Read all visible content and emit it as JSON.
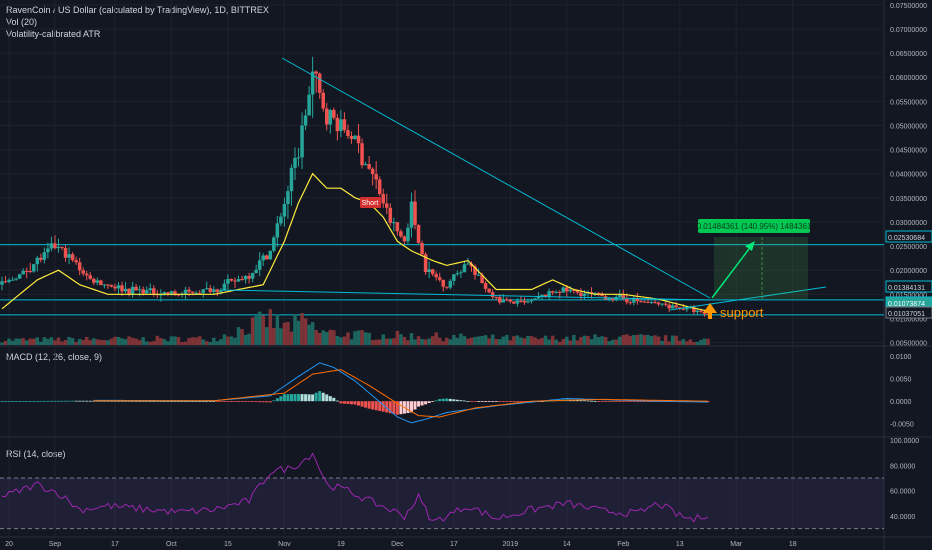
{
  "header": {
    "title": "RavenCoin / US Dollar (calculated by TradingView), 1D, BITTREX",
    "vol_label": "Vol (20)",
    "atr_label": "Volatility-calibrated ATR"
  },
  "macd_panel": {
    "label": "MACD (12, 26, close, 9)"
  },
  "rsi_panel": {
    "label": "RSI (14, close)"
  },
  "colors": {
    "background": "#131722",
    "up_candle": "#26a69a",
    "down_candle": "#ef5350",
    "atr_line": "#ffeb3b",
    "trend_line": "#00bcd4",
    "macd_line": "#2196f3",
    "signal_line": "#ff6d00",
    "rsi_line": "#9c27b0",
    "target_box": "#4caf50",
    "support_text": "#ff9800"
  },
  "annotations": {
    "target_label": "0.01484361 (140.95%) 1484361",
    "support_text": "support",
    "short_label": "Short",
    "price_badges": [
      "0.02530684",
      "0.01384131",
      "0.01073874",
      "0.01037051"
    ]
  },
  "chart_data": [
    {
      "type": "candlestick",
      "name": "price",
      "ylim": [
        0.0045,
        0.076
      ],
      "y_ticks": [
        "0.07500000",
        "0.07000000",
        "0.06500000",
        "0.06000000",
        "0.05500000",
        "0.05000000",
        "0.04500000",
        "0.04000000",
        "0.03500000",
        "0.03000000",
        "0.02500000",
        "0.02000000",
        "0.01500000",
        "0.01000000",
        "0.00500000"
      ],
      "x_ticks": [
        "20",
        "Sep",
        "17",
        "Oct",
        "15",
        "Nov",
        "19",
        "Dec",
        "17",
        "2019",
        "14",
        "Feb",
        "13",
        "Mar",
        "18"
      ],
      "close_key": [
        [
          0,
          0.017
        ],
        [
          5,
          0.019
        ],
        [
          10,
          0.022
        ],
        [
          15,
          0.025
        ],
        [
          20,
          0.022
        ],
        [
          25,
          0.018
        ],
        [
          35,
          0.016
        ],
        [
          50,
          0.015
        ],
        [
          60,
          0.016
        ],
        [
          70,
          0.019
        ],
        [
          76,
          0.024
        ],
        [
          80,
          0.034
        ],
        [
          84,
          0.045
        ],
        [
          88,
          0.06
        ],
        [
          92,
          0.052
        ],
        [
          96,
          0.05
        ],
        [
          100,
          0.047
        ],
        [
          106,
          0.038
        ],
        [
          110,
          0.03
        ],
        [
          114,
          0.026
        ],
        [
          116,
          0.033
        ],
        [
          120,
          0.02
        ],
        [
          126,
          0.017
        ],
        [
          132,
          0.022
        ],
        [
          134,
          0.019
        ],
        [
          140,
          0.014
        ],
        [
          148,
          0.013
        ],
        [
          158,
          0.016
        ],
        [
          166,
          0.015
        ],
        [
          176,
          0.014
        ],
        [
          186,
          0.013
        ],
        [
          194,
          0.012
        ],
        [
          200,
          0.0108
        ]
      ],
      "atr_key": [
        [
          0,
          0.012
        ],
        [
          10,
          0.018
        ],
        [
          16,
          0.02
        ],
        [
          22,
          0.017
        ],
        [
          30,
          0.015
        ],
        [
          60,
          0.015
        ],
        [
          74,
          0.017
        ],
        [
          80,
          0.026
        ],
        [
          84,
          0.034
        ],
        [
          88,
          0.04
        ],
        [
          92,
          0.037
        ],
        [
          96,
          0.037
        ],
        [
          100,
          0.035
        ],
        [
          104,
          0.034
        ],
        [
          108,
          0.031
        ],
        [
          112,
          0.026
        ],
        [
          116,
          0.024
        ],
        [
          122,
          0.022
        ],
        [
          126,
          0.021
        ],
        [
          132,
          0.022
        ],
        [
          136,
          0.019
        ],
        [
          140,
          0.016
        ],
        [
          150,
          0.016
        ],
        [
          156,
          0.018
        ],
        [
          162,
          0.016
        ],
        [
          168,
          0.015
        ],
        [
          176,
          0.015
        ],
        [
          186,
          0.014
        ],
        [
          194,
          0.0125
        ],
        [
          200,
          0.0115
        ]
      ]
    },
    {
      "type": "bar",
      "name": "volume",
      "vol_key": [
        [
          0,
          0.2
        ],
        [
          60,
          0.25
        ],
        [
          76,
          1.0
        ],
        [
          80,
          0.7
        ],
        [
          86,
          0.9
        ],
        [
          90,
          0.5
        ],
        [
          100,
          0.4
        ],
        [
          116,
          0.35
        ],
        [
          130,
          0.3
        ],
        [
          150,
          0.25
        ],
        [
          180,
          0.3
        ],
        [
          200,
          0.2
        ]
      ]
    },
    {
      "type": "macd",
      "name": "MACD (12, 26, close, 9)",
      "ylim": [
        -0.0075,
        0.0118
      ],
      "y_ticks": [
        "0.0100",
        "0.0050",
        "0.0000",
        "-0.0050"
      ],
      "macd_key": [
        [
          0,
          0
        ],
        [
          20,
          0.0002
        ],
        [
          60,
          0.0001
        ],
        [
          76,
          0.0012
        ],
        [
          84,
          0.0055
        ],
        [
          90,
          0.0085
        ],
        [
          94,
          0.0075
        ],
        [
          100,
          0.0045
        ],
        [
          106,
          0.0005
        ],
        [
          112,
          -0.0035
        ],
        [
          116,
          -0.0048
        ],
        [
          120,
          -0.004
        ],
        [
          126,
          -0.0025
        ],
        [
          140,
          -0.001
        ],
        [
          160,
          0.0006
        ],
        [
          180,
          0.0001
        ],
        [
          200,
          -0.0002
        ]
      ],
      "signal_key": [
        [
          0,
          0
        ],
        [
          20,
          0.0001
        ],
        [
          60,
          0.0001
        ],
        [
          80,
          0.0018
        ],
        [
          88,
          0.006
        ],
        [
          96,
          0.007
        ],
        [
          104,
          0.0035
        ],
        [
          112,
          -0.0005
        ],
        [
          118,
          -0.0032
        ],
        [
          124,
          -0.0035
        ],
        [
          134,
          -0.0015
        ],
        [
          150,
          0
        ],
        [
          170,
          0.0004
        ],
        [
          200,
          0
        ]
      ]
    },
    {
      "type": "line",
      "name": "RSI (14, close)",
      "ylim": [
        25,
        100
      ],
      "y_ticks": [
        "100.0000",
        "80.0000",
        "60.0000",
        "40.0000"
      ],
      "bands": [
        30,
        70
      ],
      "rsi_key": [
        [
          0,
          55
        ],
        [
          10,
          65
        ],
        [
          16,
          58
        ],
        [
          22,
          45
        ],
        [
          30,
          48
        ],
        [
          50,
          43
        ],
        [
          60,
          45
        ],
        [
          70,
          52
        ],
        [
          76,
          75
        ],
        [
          82,
          78
        ],
        [
          86,
          85
        ],
        [
          88,
          90
        ],
        [
          92,
          65
        ],
        [
          98,
          60
        ],
        [
          104,
          52
        ],
        [
          110,
          45
        ],
        [
          114,
          40
        ],
        [
          118,
          55
        ],
        [
          122,
          35
        ],
        [
          132,
          48
        ],
        [
          140,
          38
        ],
        [
          150,
          45
        ],
        [
          160,
          50
        ],
        [
          170,
          44
        ],
        [
          180,
          42
        ],
        [
          186,
          50
        ],
        [
          192,
          40
        ],
        [
          196,
          37
        ],
        [
          200,
          42
        ]
      ]
    }
  ]
}
